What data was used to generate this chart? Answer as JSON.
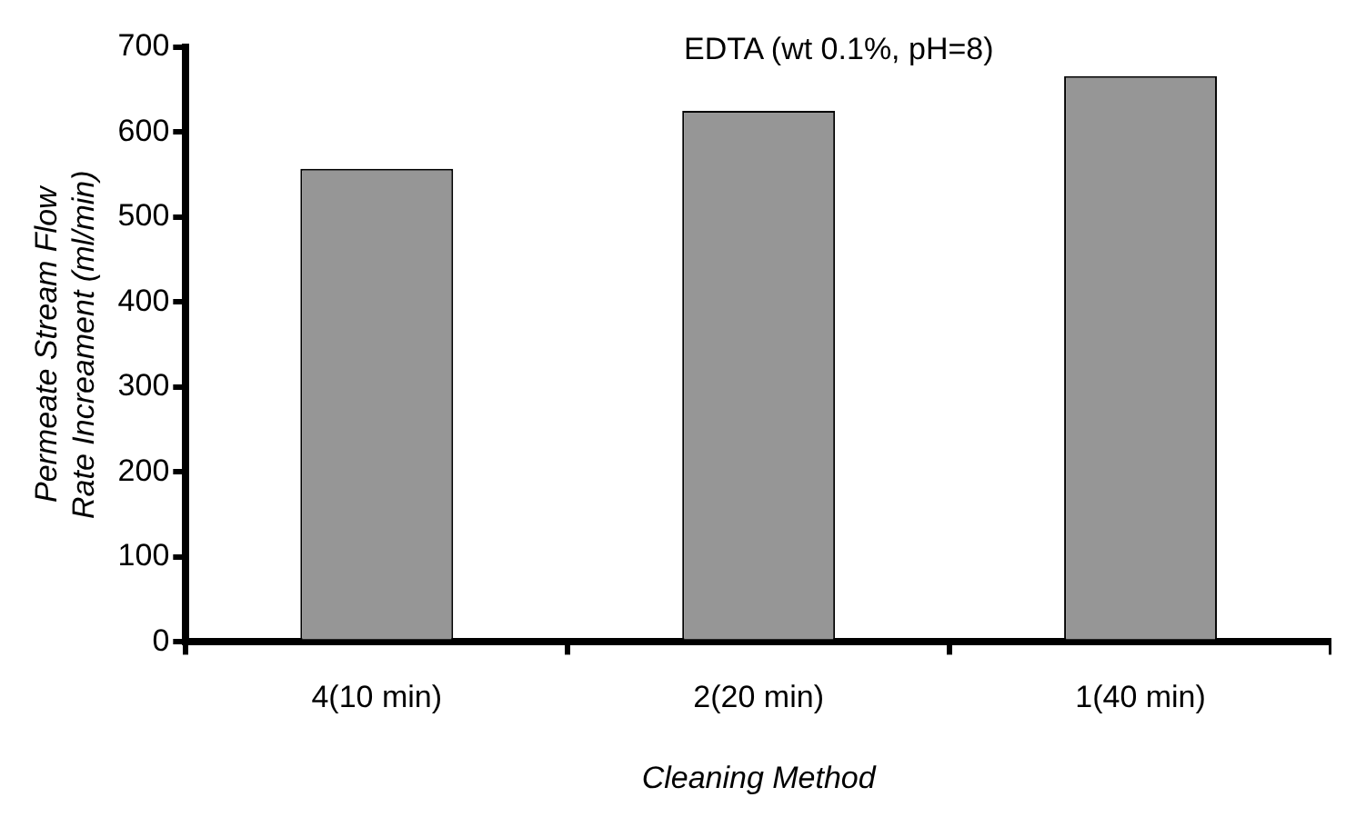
{
  "chart_data": {
    "type": "bar",
    "title": "EDTA (wt 0.1%, pH=8)",
    "xlabel": "Cleaning Method",
    "ylabel": "Permeate Stream Flow\nRate Increament (ml/min)",
    "categories": [
      "4(10 min)",
      "2(20 min)",
      "1(40 min)"
    ],
    "values": [
      557,
      625,
      666
    ],
    "color": "#969696",
    "ylim": [
      0,
      700
    ],
    "yticks": [
      0,
      100,
      200,
      300,
      400,
      500,
      600,
      700
    ],
    "grid": false,
    "legend": false
  }
}
